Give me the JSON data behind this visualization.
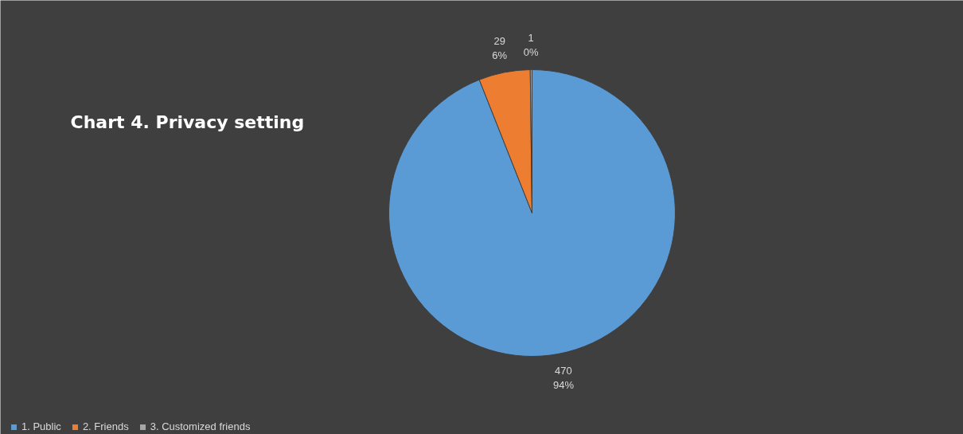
{
  "chart_data": {
    "type": "pie",
    "title": "Chart 4. Privacy setting",
    "categories": [
      "1. Public",
      "2. Friends",
      "3. Customized friends"
    ],
    "values": [
      470,
      29,
      1
    ],
    "colors": [
      "#5b9bd5",
      "#ed7d31",
      "#a5a5a5"
    ],
    "value_labels": [
      "470\n94%",
      "29\n6%",
      "1\n0%"
    ],
    "legend": "bottom left"
  }
}
